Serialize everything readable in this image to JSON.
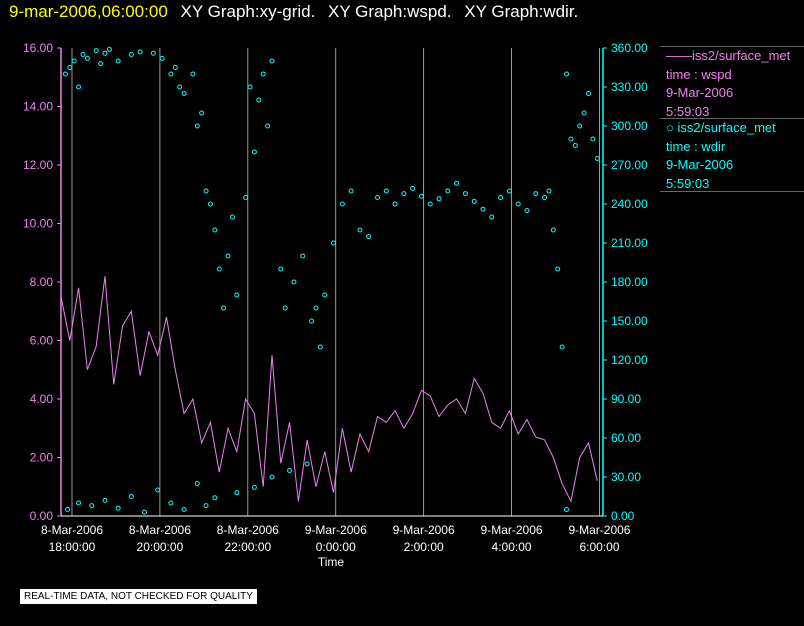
{
  "header": {
    "date": "9-mar-2006,06:00:00",
    "graphs": [
      "XY Graph:xy-grid.",
      "XY Graph:wspd.",
      "XY Graph:wdir."
    ]
  },
  "legend": [
    {
      "marker": "——",
      "name": "iss2/surface_met",
      "var": "time : wspd",
      "date": "9-Mar-2006",
      "time": "5:59:03",
      "color": "#ee82ee"
    },
    {
      "marker": "○",
      "name": "iss2/surface_met",
      "var": "time : wdir",
      "date": "9-Mar-2006",
      "time": "5:59:03",
      "color": "#00ffff"
    }
  ],
  "disclaimer": "REAL-TIME DATA, NOT CHECKED FOR QUALITY",
  "chart_data": {
    "type": "line",
    "xlabel": "Time",
    "xlim": [
      0,
      12.33
    ],
    "x_unit": "hours since 8-Mar-2006 17:45",
    "x_ticks": [
      {
        "pos": 0.25,
        "date": "8-Mar-2006",
        "time": "18:00:00"
      },
      {
        "pos": 2.25,
        "date": "8-Mar-2006",
        "time": "20:00:00"
      },
      {
        "pos": 4.25,
        "date": "8-Mar-2006",
        "time": "22:00:00"
      },
      {
        "pos": 6.25,
        "date": "9-Mar-2006",
        "time": "0:00:00"
      },
      {
        "pos": 8.25,
        "date": "9-Mar-2006",
        "time": "2:00:00"
      },
      {
        "pos": 10.25,
        "date": "9-Mar-2006",
        "time": "4:00:00"
      },
      {
        "pos": 12.25,
        "date": "9-Mar-2006",
        "time": "6:00:00"
      }
    ],
    "y_left": {
      "label": "wspd",
      "lim": [
        0,
        16
      ],
      "ticks": [
        "0.00",
        "2.00",
        "4.00",
        "6.00",
        "8.00",
        "10.00",
        "12.00",
        "14.00",
        "16.00"
      ]
    },
    "y_right": {
      "label": "wdir",
      "lim": [
        0,
        360
      ],
      "ticks": [
        "0.00",
        "30.00",
        "60.00",
        "90.00",
        "120.00",
        "150.00",
        "180.00",
        "210.00",
        "240.00",
        "270.00",
        "300.00",
        "330.00",
        "360.00"
      ]
    },
    "colors": {
      "wspd": "#ee82ee",
      "wdir": "#00ffff",
      "grid": "#ffffff",
      "axis_left": "#ee82ee",
      "axis_right": "#00ffff"
    },
    "series": [
      {
        "name": "wspd",
        "axis": "left",
        "style": "line",
        "x": [
          0.0,
          0.2,
          0.4,
          0.6,
          0.8,
          1.0,
          1.2,
          1.4,
          1.6,
          1.8,
          2.0,
          2.2,
          2.4,
          2.6,
          2.8,
          3.0,
          3.2,
          3.4,
          3.6,
          3.8,
          4.0,
          4.2,
          4.4,
          4.6,
          4.8,
          5.0,
          5.2,
          5.4,
          5.6,
          5.8,
          6.0,
          6.2,
          6.4,
          6.6,
          6.8,
          7.0,
          7.2,
          7.4,
          7.6,
          7.8,
          8.0,
          8.2,
          8.4,
          8.6,
          8.8,
          9.0,
          9.2,
          9.4,
          9.6,
          9.8,
          10.0,
          10.2,
          10.4,
          10.6,
          10.8,
          11.0,
          11.2,
          11.4,
          11.6,
          11.8,
          12.0,
          12.2
        ],
        "values": [
          7.5,
          6.0,
          7.8,
          5.0,
          5.8,
          8.2,
          4.5,
          6.5,
          7.0,
          4.8,
          6.3,
          5.5,
          6.8,
          5.0,
          3.5,
          4.0,
          2.5,
          3.2,
          1.5,
          3.0,
          2.2,
          4.0,
          3.5,
          1.0,
          5.5,
          1.8,
          3.2,
          0.5,
          2.6,
          1.0,
          2.2,
          0.8,
          3.0,
          1.5,
          2.8,
          2.2,
          3.4,
          3.2,
          3.6,
          3.0,
          3.5,
          4.3,
          4.1,
          3.4,
          3.8,
          4.0,
          3.5,
          4.7,
          4.2,
          3.2,
          3.0,
          3.6,
          2.8,
          3.3,
          2.7,
          2.6,
          2.0,
          1.1,
          0.5,
          2.0,
          2.5,
          1.2
        ]
      },
      {
        "name": "wdir",
        "axis": "right",
        "style": "markers",
        "x": [
          0.1,
          0.2,
          0.3,
          0.4,
          0.5,
          0.6,
          0.8,
          0.9,
          1.0,
          1.1,
          1.3,
          1.6,
          1.8,
          2.1,
          2.3,
          2.5,
          2.6,
          2.7,
          2.8,
          3.0,
          3.1,
          3.2,
          3.3,
          3.4,
          3.5,
          3.6,
          3.7,
          3.8,
          3.9,
          4.0,
          4.2,
          4.3,
          4.4,
          4.5,
          4.6,
          4.7,
          4.8,
          5.0,
          5.1,
          5.3,
          5.5,
          5.7,
          5.8,
          5.9,
          6.0,
          6.2,
          6.4,
          6.6,
          6.8,
          7.0,
          7.2,
          7.4,
          7.6,
          7.8,
          8.0,
          8.2,
          8.4,
          8.6,
          8.8,
          9.0,
          9.2,
          9.4,
          9.6,
          9.8,
          10.0,
          10.2,
          10.4,
          10.6,
          10.8,
          11.0,
          11.1,
          11.2,
          11.3,
          11.4,
          11.5,
          11.6,
          11.7,
          11.8,
          11.9,
          12.0,
          12.1,
          12.2,
          0.15,
          0.4,
          0.7,
          1.0,
          1.3,
          1.6,
          1.9,
          2.2,
          2.5,
          2.8,
          3.1,
          3.3,
          3.5,
          4.0,
          4.4,
          4.8,
          5.2,
          5.6,
          11.5
        ],
        "values": [
          340,
          345,
          350,
          330,
          355,
          352,
          358,
          348,
          356,
          359,
          350,
          355,
          357,
          356,
          352,
          340,
          345,
          330,
          325,
          340,
          300,
          310,
          250,
          240,
          220,
          190,
          160,
          200,
          230,
          170,
          245,
          330,
          280,
          320,
          340,
          300,
          350,
          190,
          160,
          180,
          200,
          150,
          160,
          130,
          170,
          210,
          240,
          250,
          220,
          215,
          245,
          250,
          240,
          248,
          252,
          246,
          240,
          244,
          250,
          256,
          248,
          242,
          236,
          230,
          245,
          250,
          240,
          235,
          248,
          245,
          250,
          220,
          190,
          130,
          340,
          290,
          285,
          300,
          310,
          325,
          290,
          275,
          5,
          10,
          8,
          12,
          6,
          15,
          3,
          20,
          10,
          5,
          25,
          8,
          14,
          18,
          22,
          30,
          35,
          40,
          5
        ]
      }
    ]
  }
}
